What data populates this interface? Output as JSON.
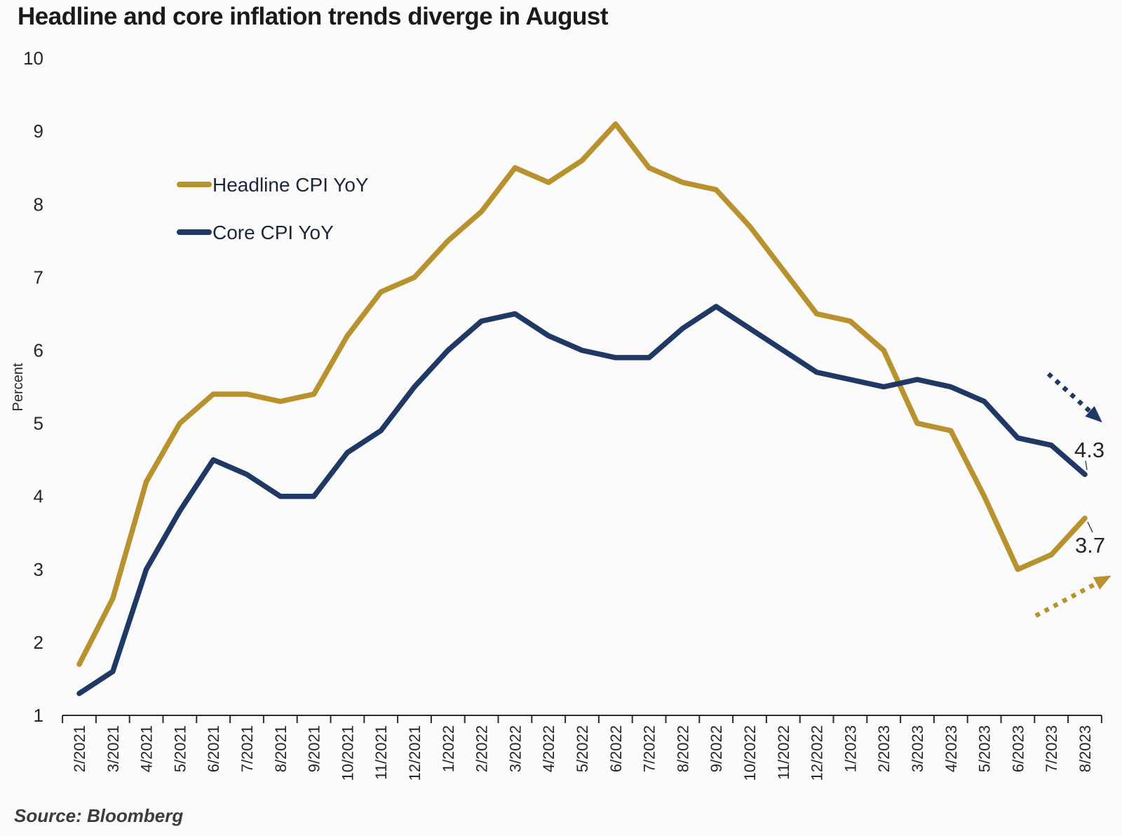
{
  "page": {
    "title": "Headline and core inflation trends diverge in August",
    "source": "Source: Bloomberg"
  },
  "chart_data": {
    "type": "line",
    "title": "Headline and core inflation trends diverge in August",
    "xlabel": "",
    "ylabel": "Percent",
    "ylim": [
      1,
      10
    ],
    "yticks": [
      1,
      2,
      3,
      4,
      5,
      6,
      7,
      8,
      9,
      10
    ],
    "grid": false,
    "legend_position": "inside-top-left",
    "categories": [
      "2/2021",
      "3/2021",
      "4/2021",
      "5/2021",
      "6/2021",
      "7/2021",
      "8/2021",
      "9/2021",
      "10/2021",
      "11/2021",
      "12/2021",
      "1/2022",
      "2/2022",
      "3/2022",
      "4/2022",
      "5/2022",
      "6/2022",
      "7/2022",
      "8/2022",
      "9/2022",
      "10/2022",
      "11/2022",
      "12/2022",
      "1/2023",
      "2/2023",
      "3/2023",
      "4/2023",
      "5/2023",
      "6/2023",
      "7/2023",
      "8/2023"
    ],
    "series": [
      {
        "name": "Headline CPI YoY",
        "color": "#B7922F",
        "values": [
          1.7,
          2.6,
          4.2,
          5.0,
          5.4,
          5.4,
          5.3,
          5.4,
          6.2,
          6.8,
          7.0,
          7.5,
          7.9,
          8.5,
          8.3,
          8.6,
          9.1,
          8.5,
          8.3,
          8.2,
          7.7,
          7.1,
          6.5,
          6.4,
          6.0,
          5.0,
          4.9,
          4.0,
          3.0,
          3.2,
          3.7
        ]
      },
      {
        "name": "Core CPI YoY",
        "color": "#1F3864",
        "values": [
          1.3,
          1.6,
          3.0,
          3.8,
          4.5,
          4.3,
          4.0,
          4.0,
          4.6,
          4.9,
          5.5,
          6.0,
          6.4,
          6.5,
          6.2,
          6.0,
          5.9,
          5.9,
          6.3,
          6.6,
          6.3,
          6.0,
          5.7,
          5.6,
          5.5,
          5.6,
          5.5,
          5.3,
          4.8,
          4.7,
          4.3
        ]
      }
    ],
    "annotations": [
      {
        "label": "4.3",
        "series": "Core CPI YoY",
        "category": "8/2023"
      },
      {
        "label": "3.7",
        "series": "Headline CPI YoY",
        "category": "8/2023"
      }
    ],
    "trend_arrows": [
      {
        "series": "Core CPI YoY",
        "direction": "down"
      },
      {
        "series": "Headline CPI YoY",
        "direction": "up"
      }
    ]
  }
}
